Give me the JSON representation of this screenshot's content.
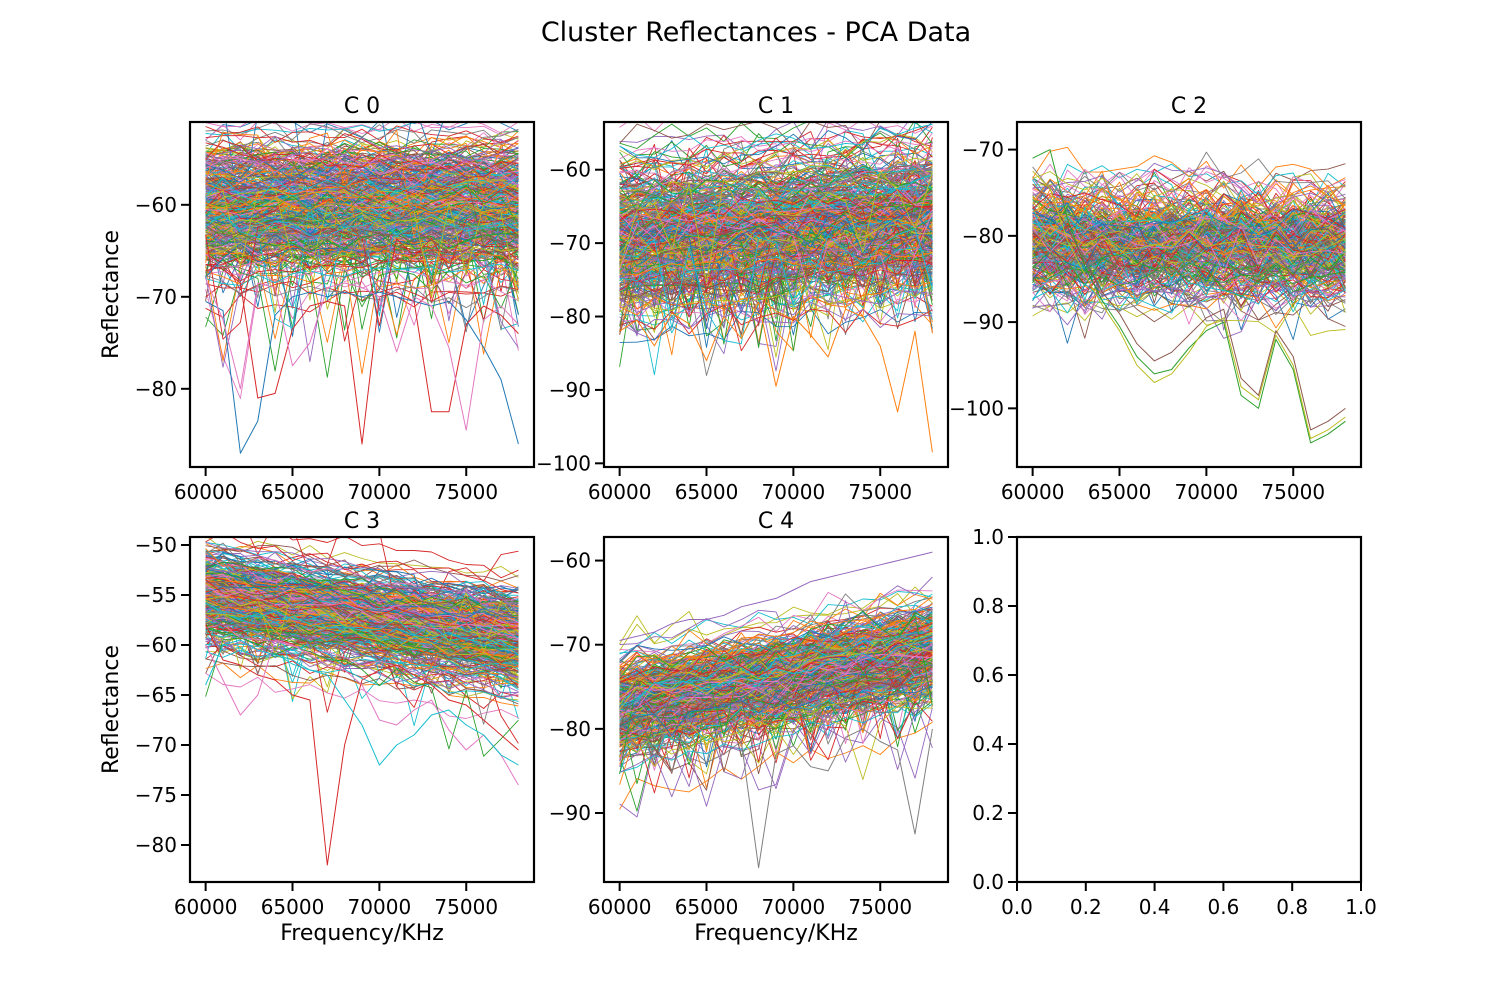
{
  "figure": {
    "title": "Cluster Reflectances - PCA Data"
  },
  "colors": [
    "#1f77b4",
    "#ff7f0e",
    "#2ca02c",
    "#d62728",
    "#9467bd",
    "#8c564b",
    "#e377c2",
    "#7f7f7f",
    "#bcbd22",
    "#17becf"
  ],
  "chart_data": [
    {
      "type": "line",
      "title": "C 0",
      "xlabel": "",
      "ylabel": "Reflectance",
      "x": [
        60000,
        61000,
        62000,
        63000,
        64000,
        65000,
        66000,
        67000,
        68000,
        69000,
        70000,
        71000,
        72000,
        73000,
        74000,
        75000,
        76000,
        77000,
        78000
      ],
      "xlim": [
        59100,
        78900
      ],
      "ylim": [
        -88.5,
        -51.0
      ],
      "xticks": [
        60000,
        65000,
        70000,
        75000
      ],
      "yticks": [
        -60,
        -70,
        -80
      ],
      "series_profile": {
        "count": 420,
        "start_center": -60.5,
        "end_center": -60.5,
        "spread": 3.6,
        "noise": 0.7,
        "outlier_rate": 0.09,
        "outlier_depth": 12
      },
      "series": [
        {
          "name": "",
          "values": [
            -70.5,
            -71.5,
            -87.0,
            -83.5,
            -72.0,
            -70.0,
            -69.5,
            -70.0,
            -69.5,
            -70.0,
            -69.5,
            -70.0,
            -70.5,
            -71.0,
            -70.5,
            -72.5,
            -75.5,
            -79.0,
            -86.0
          ]
        },
        {
          "name": "",
          "values": [
            -66.5,
            -67.0,
            -68.5,
            -81.0,
            -80.5,
            -73.5,
            -71.0,
            -70.5,
            -71.0,
            -86.0,
            -70.0,
            -69.5,
            -70.5,
            -82.5,
            -82.5,
            -73.0,
            -71.0,
            -72.0,
            -74.0
          ]
        },
        {
          "name": "",
          "values": [
            -68.0,
            -72.5,
            -80.0,
            -68.5,
            -69.0,
            -77.5,
            -75.0,
            -69.0,
            -68.5,
            -69.0,
            -70.0,
            -76.0,
            -70.0,
            -71.0,
            -75.5,
            -84.5,
            -72.5,
            -71.0,
            -73.0
          ]
        }
      ]
    },
    {
      "type": "line",
      "title": "C 1",
      "xlabel": "",
      "ylabel": "",
      "x": [
        60000,
        61000,
        62000,
        63000,
        64000,
        65000,
        66000,
        67000,
        68000,
        69000,
        70000,
        71000,
        72000,
        73000,
        74000,
        75000,
        76000,
        77000,
        78000
      ],
      "xlim": [
        59100,
        78900
      ],
      "ylim": [
        -100.5,
        -53.5
      ],
      "xticks": [
        60000,
        65000,
        70000,
        75000
      ],
      "yticks": [
        -60,
        -70,
        -80,
        -90,
        -100
      ],
      "series_profile": {
        "count": 420,
        "start_center": -69.0,
        "end_center": -66.0,
        "spread": 5.0,
        "noise": 1.0,
        "outlier_rate": 0.22,
        "outlier_depth": 14
      },
      "series": [
        {
          "name": "",
          "values": [
            -82.0,
            -80.5,
            -84.0,
            -79.5,
            -81.0,
            -86.0,
            -80.0,
            -83.0,
            -78.0,
            -89.5,
            -80.0,
            -82.5,
            -85.5,
            -79.0,
            -80.0,
            -84.0,
            -93.0,
            -82.0,
            -98.5
          ]
        }
      ]
    },
    {
      "type": "line",
      "title": "C 2",
      "xlabel": "",
      "ylabel": "",
      "x": [
        60000,
        61000,
        62000,
        63000,
        64000,
        65000,
        66000,
        67000,
        68000,
        69000,
        70000,
        71000,
        72000,
        73000,
        74000,
        75000,
        76000,
        77000,
        78000
      ],
      "xlim": [
        59100,
        78900
      ],
      "ylim": [
        -106.8,
        -66.8
      ],
      "xticks": [
        60000,
        65000,
        70000,
        75000
      ],
      "yticks": [
        -70,
        -80,
        -90,
        -100
      ],
      "series_profile": {
        "count": 300,
        "start_center": -80.5,
        "end_center": -81.0,
        "spread": 3.0,
        "noise": 1.4,
        "outlier_rate": 0.1,
        "outlier_depth": 6
      },
      "series": [
        {
          "name": "",
          "values": [
            -71.0,
            -70.0,
            -78.0,
            -83.5,
            -87.5,
            -90.5,
            -94.0,
            -96.0,
            -95.5,
            -93.0,
            -91.0,
            -90.0,
            -98.5,
            -100.0,
            -92.0,
            -95.5,
            -104.0,
            -103.0,
            -101.5
          ]
        },
        {
          "name": "",
          "values": [
            -74.0,
            -76.0,
            -79.0,
            -83.0,
            -86.5,
            -89.0,
            -92.5,
            -94.5,
            -93.5,
            -91.5,
            -89.5,
            -88.5,
            -96.5,
            -98.5,
            -91.0,
            -94.0,
            -102.5,
            -101.5,
            -100.0
          ]
        },
        {
          "name": "",
          "values": [
            -72.5,
            -74.5,
            -80.5,
            -84.5,
            -88.0,
            -91.0,
            -95.0,
            -97.0,
            -96.0,
            -93.5,
            -90.5,
            -89.5,
            -97.5,
            -99.0,
            -91.5,
            -95.0,
            -103.5,
            -102.5,
            -101.0
          ]
        }
      ]
    },
    {
      "type": "line",
      "title": "C 3",
      "xlabel": "Frequency/KHz",
      "ylabel": "Reflectance",
      "x": [
        60000,
        61000,
        62000,
        63000,
        64000,
        65000,
        66000,
        67000,
        68000,
        69000,
        70000,
        71000,
        72000,
        73000,
        74000,
        75000,
        76000,
        77000,
        78000
      ],
      "xlim": [
        59100,
        78900
      ],
      "ylim": [
        -83.7,
        -49.2
      ],
      "xticks": [
        60000,
        65000,
        70000,
        75000
      ],
      "yticks": [
        -50,
        -55,
        -60,
        -65,
        -70,
        -75,
        -80
      ],
      "series_profile": {
        "count": 420,
        "start_center": -55.0,
        "end_center": -59.5,
        "spread": 2.3,
        "noise": 0.5,
        "outlier_rate": 0.07,
        "outlier_depth": 7
      },
      "series": [
        {
          "name": "",
          "values": [
            -58.0,
            -61.5,
            -62.0,
            -63.0,
            -63.5,
            -65.0,
            -65.5,
            -82.0,
            -70.0,
            -63.5,
            -62.5,
            -62.0,
            -63.0,
            -64.0,
            -65.5,
            -66.0,
            -67.5,
            -69.0,
            -70.5
          ]
        },
        {
          "name": "",
          "values": [
            -60.0,
            -63.5,
            -67.0,
            -65.0,
            -59.5,
            -60.0,
            -61.0,
            -62.0,
            -62.5,
            -64.0,
            -67.5,
            -68.0,
            -66.5,
            -65.5,
            -68.5,
            -70.5,
            -69.0,
            -71.0,
            -74.0
          ]
        },
        {
          "name": "",
          "values": [
            -64.0,
            -60.0,
            -59.5,
            -60.5,
            -61.0,
            -61.5,
            -62.5,
            -63.0,
            -65.5,
            -68.0,
            -72.0,
            -70.0,
            -69.0,
            -67.0,
            -66.5,
            -68.0,
            -69.0,
            -71.0,
            -72.0
          ]
        }
      ]
    },
    {
      "type": "line",
      "title": "C 4",
      "xlabel": "Frequency/KHz",
      "ylabel": "",
      "x": [
        60000,
        61000,
        62000,
        63000,
        64000,
        65000,
        66000,
        67000,
        68000,
        69000,
        70000,
        71000,
        72000,
        73000,
        74000,
        75000,
        76000,
        77000,
        78000
      ],
      "xlim": [
        59100,
        78900
      ],
      "ylim": [
        -98.2,
        -57.2
      ],
      "xticks": [
        60000,
        65000,
        70000,
        75000
      ],
      "yticks": [
        -60,
        -70,
        -80,
        -90
      ],
      "series_profile": {
        "count": 420,
        "start_center": -77.0,
        "end_center": -70.5,
        "spread": 2.6,
        "noise": 0.8,
        "outlier_rate": 0.15,
        "outlier_depth": 9
      },
      "series": [
        {
          "name": "",
          "values": [
            -69.5,
            -69.0,
            -68.5,
            -67.5,
            -67.0,
            -67.0,
            -66.5,
            -65.5,
            -65.0,
            -64.5,
            -63.5,
            -62.5,
            -62.0,
            -61.5,
            -61.0,
            -60.5,
            -60.0,
            -59.5,
            -59.0
          ]
        },
        {
          "name": "",
          "values": [
            -80.0,
            -82.0,
            -81.0,
            -80.5,
            -82.0,
            -84.0,
            -83.0,
            -81.5,
            -96.5,
            -83.0,
            -82.0,
            -84.5,
            -85.0,
            -81.0,
            -80.0,
            -81.5,
            -82.5,
            -92.5,
            -80.0
          ]
        }
      ]
    },
    {
      "type": "line",
      "title": "",
      "xlabel": "",
      "ylabel": "",
      "x": [],
      "xlim": [
        0.0,
        1.0
      ],
      "ylim": [
        0.0,
        1.0
      ],
      "xticks": [
        0.0,
        0.2,
        0.4,
        0.6,
        0.8,
        1.0
      ],
      "yticks": [
        0.0,
        0.2,
        0.4,
        0.6,
        0.8,
        1.0
      ],
      "tick_labels_x": [
        "0.0",
        "0.2",
        "0.4",
        "0.6",
        "0.8",
        "1.0"
      ],
      "tick_labels_y": [
        "0.0",
        "0.2",
        "0.4",
        "0.6",
        "0.8",
        "1.0"
      ],
      "series": []
    }
  ]
}
